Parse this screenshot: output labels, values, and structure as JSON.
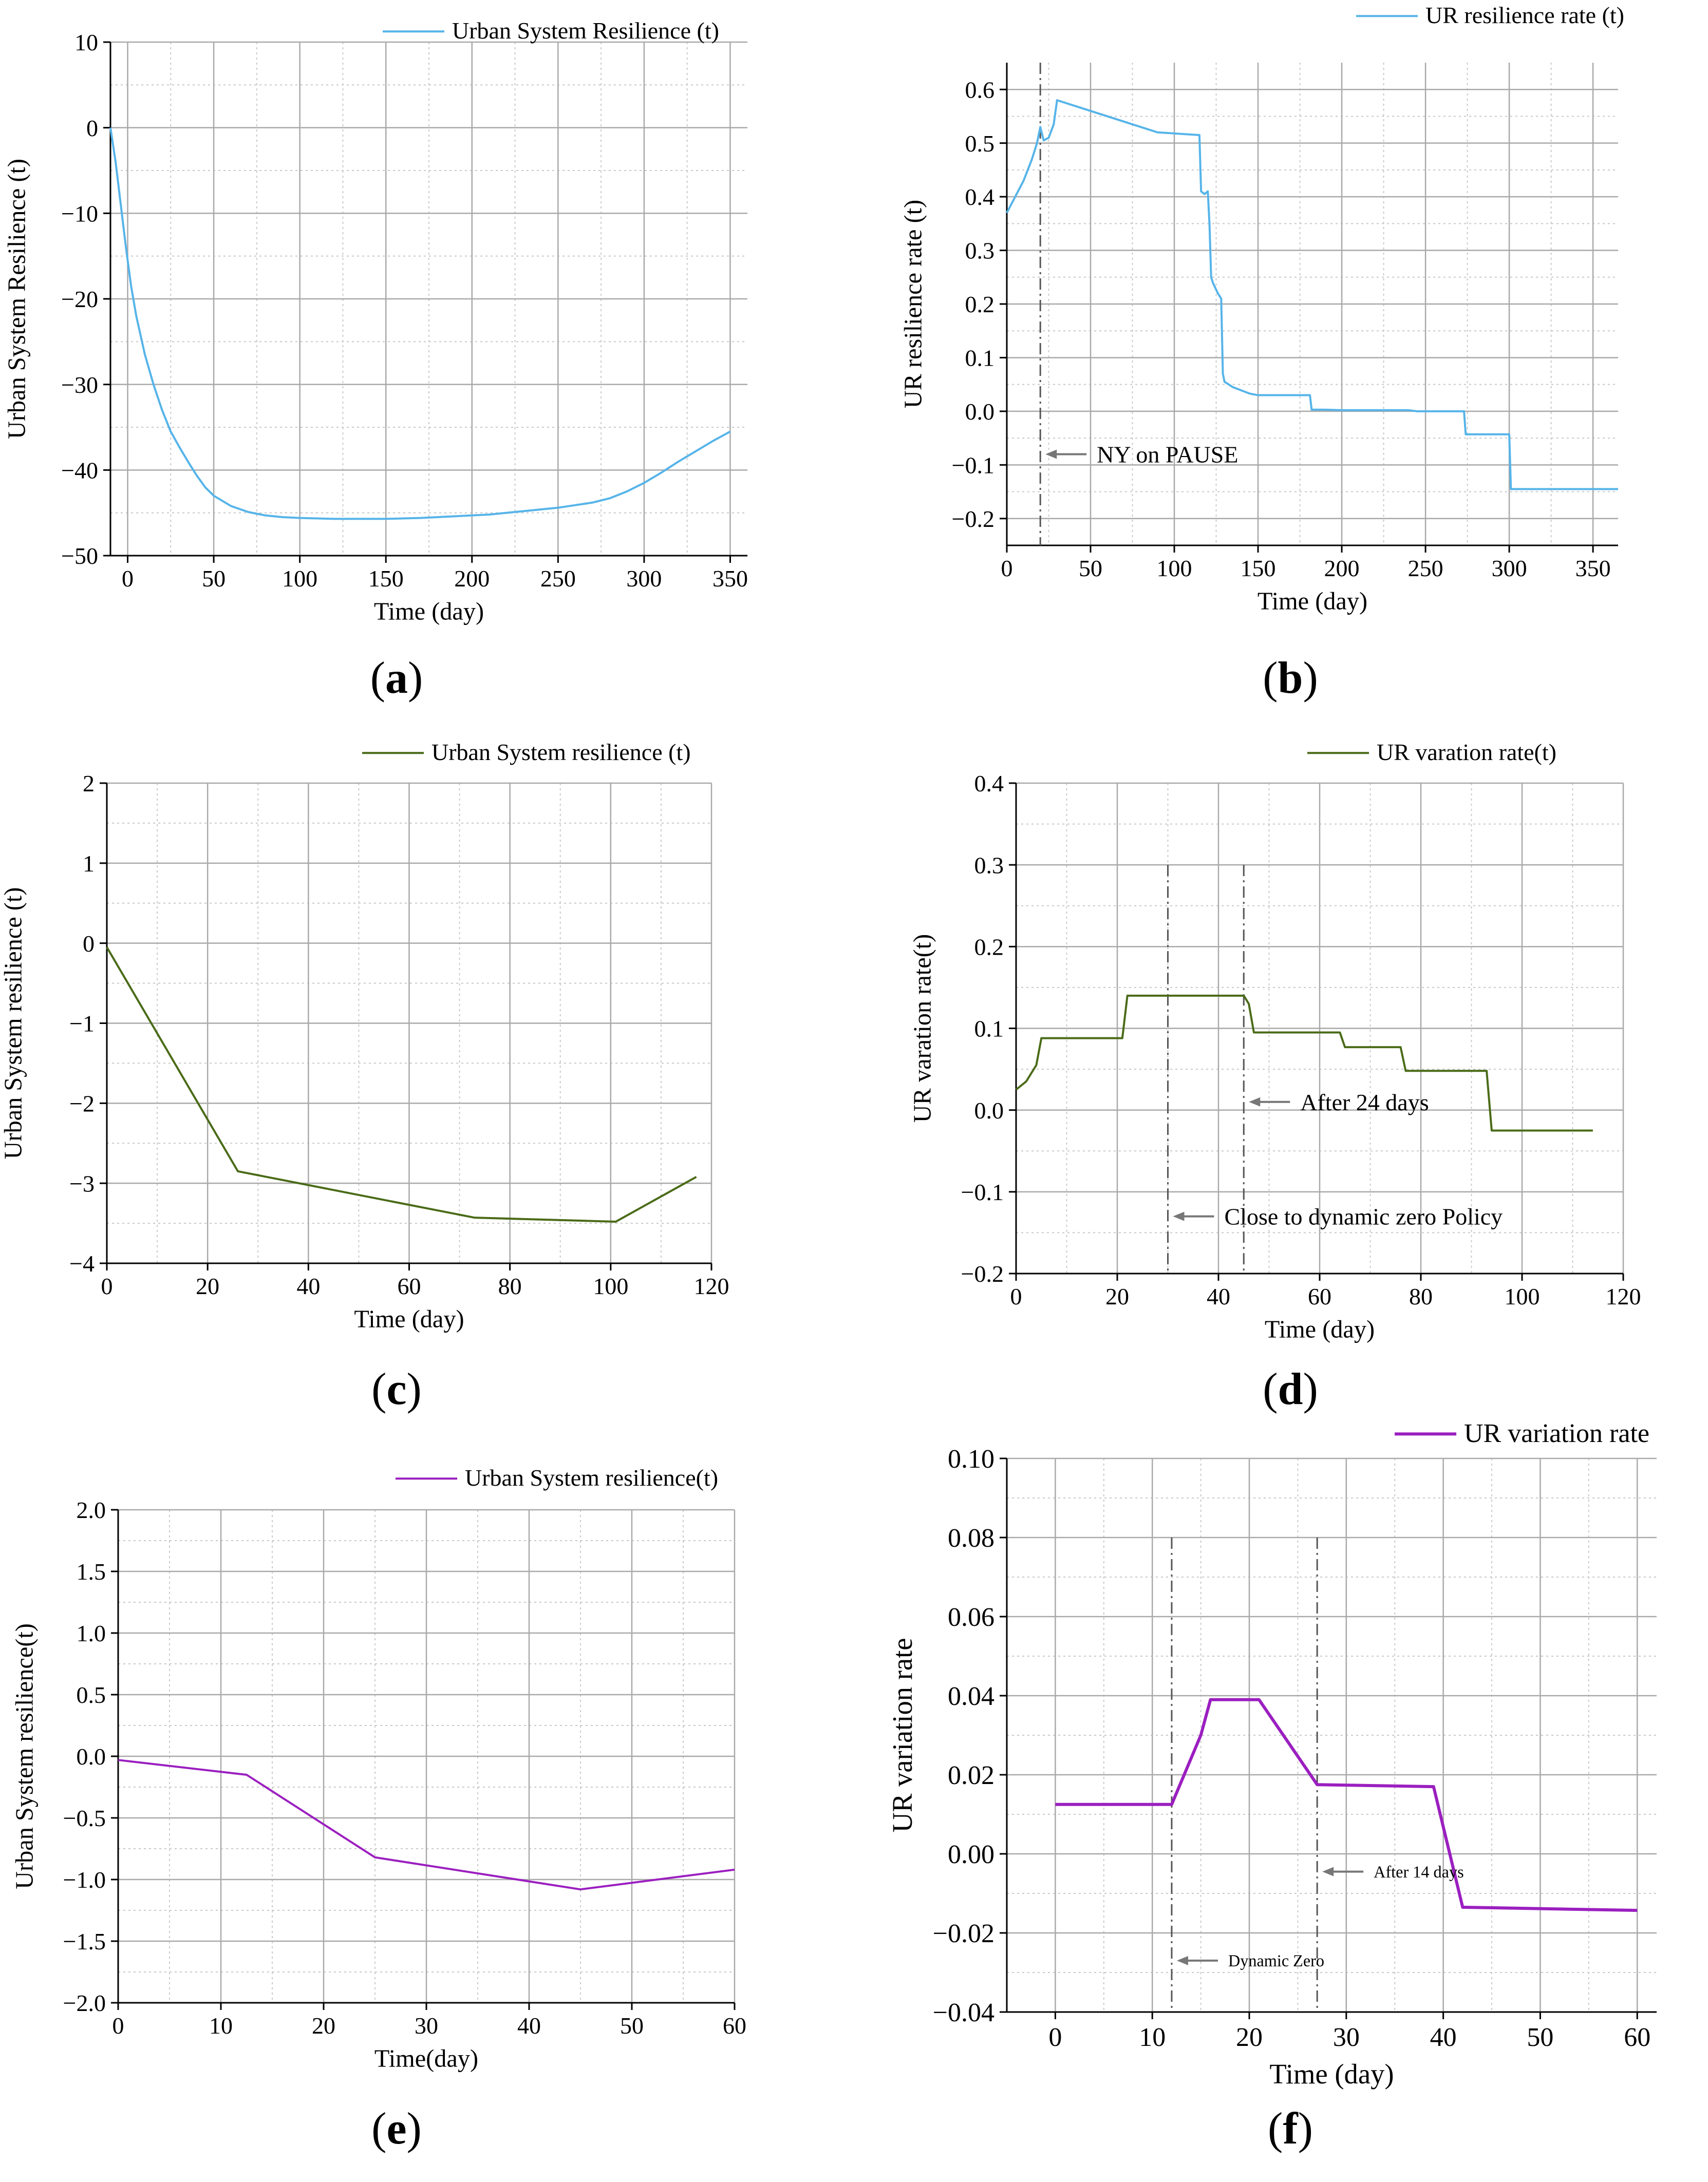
{
  "panel_labels": [
    "a",
    "b",
    "c",
    "d",
    "e",
    "f"
  ],
  "chart_data": [
    {
      "id": "a",
      "type": "line",
      "legend_position": "top-right",
      "title": "",
      "xlabel": "Time (day)",
      "ylabel": "Urban System Resilience (t)",
      "xlim": [
        -10,
        360
      ],
      "ylim": [
        -50,
        10
      ],
      "xticks": [
        0,
        50,
        100,
        150,
        200,
        250,
        300,
        350
      ],
      "yticks": [
        -50,
        -40,
        -30,
        -20,
        -10,
        0,
        10
      ],
      "xticklabels": [
        "0",
        "50",
        "100",
        "150",
        "200",
        "250",
        "300",
        "350"
      ],
      "yticklabels": [
        "−50",
        "−40",
        "−30",
        "−20",
        "−10",
        "0",
        "10"
      ],
      "color": "#56b4e9",
      "series": [
        {
          "name": "Urban System Resilience (t)",
          "x": [
            -10,
            -7,
            -4,
            -1,
            2,
            5,
            10,
            15,
            20,
            25,
            30,
            35,
            40,
            45,
            50,
            60,
            70,
            80,
            90,
            100,
            110,
            120,
            130,
            140,
            150,
            160,
            170,
            180,
            190,
            200,
            210,
            220,
            230,
            240,
            250,
            260,
            270,
            280,
            290,
            300,
            310,
            320,
            330,
            340,
            350
          ],
          "y": [
            0,
            -4,
            -9,
            -14,
            -18.5,
            -22,
            -26.5,
            -30,
            -33,
            -35.5,
            -37.3,
            -39,
            -40.6,
            -42,
            -43,
            -44.2,
            -44.9,
            -45.3,
            -45.5,
            -45.6,
            -45.65,
            -45.7,
            -45.7,
            -45.7,
            -45.7,
            -45.65,
            -45.6,
            -45.5,
            -45.4,
            -45.3,
            -45.2,
            -45,
            -44.8,
            -44.6,
            -44.4,
            -44.1,
            -43.8,
            -43.3,
            -42.5,
            -41.5,
            -40.3,
            -39,
            -37.8,
            -36.6,
            -35.5
          ]
        }
      ]
    },
    {
      "id": "b",
      "type": "line",
      "legend_position": "top-right",
      "title": "",
      "xlabel": "Time (day)",
      "ylabel": "UR resilience rate (t)",
      "xlim": [
        0,
        365
      ],
      "ylim": [
        -0.25,
        0.65
      ],
      "xticks": [
        0,
        50,
        100,
        150,
        200,
        250,
        300,
        350
      ],
      "yticks": [
        -0.2,
        -0.1,
        0.0,
        0.1,
        0.2,
        0.3,
        0.4,
        0.5,
        0.6
      ],
      "xticklabels": [
        "0",
        "50",
        "100",
        "150",
        "200",
        "250",
        "300",
        "350"
      ],
      "yticklabels": [
        "−0.2",
        "−0.1",
        "0.0",
        "0.1",
        "0.2",
        "0.3",
        "0.4",
        "0.5",
        "0.6"
      ],
      "color": "#56b4e9",
      "series": [
        {
          "name": "UR resilience rate (t)",
          "x": [
            0,
            5,
            10,
            15,
            18,
            20,
            22,
            25,
            28,
            30,
            60,
            90,
            115,
            116,
            118,
            120,
            121,
            122,
            123,
            126,
            128,
            129,
            130,
            135,
            145,
            150,
            160,
            170,
            181,
            182,
            190,
            200,
            210,
            220,
            240,
            245,
            260,
            273,
            274,
            300,
            301,
            310,
            320,
            340,
            365
          ],
          "y": [
            0.37,
            0.4,
            0.43,
            0.47,
            0.5,
            0.53,
            0.505,
            0.51,
            0.535,
            0.58,
            0.55,
            0.52,
            0.515,
            0.41,
            0.405,
            0.41,
            0.35,
            0.25,
            0.24,
            0.22,
            0.21,
            0.07,
            0.055,
            0.045,
            0.033,
            0.03,
            0.03,
            0.03,
            0.03,
            0.003,
            0.003,
            0.002,
            0.002,
            0.002,
            0.002,
            0.0,
            0.0,
            0.0,
            -0.043,
            -0.043,
            -0.145,
            -0.145,
            -0.145,
            -0.145,
            -0.145
          ]
        }
      ],
      "vlines": [
        20
      ],
      "annotations": [
        {
          "text": "NY on PAUSE",
          "x": 20,
          "y": -0.08
        }
      ]
    },
    {
      "id": "c",
      "type": "line",
      "legend_position": "top-right",
      "title": "",
      "xlabel": "Time (day)",
      "ylabel": "Urban System resilience (t)",
      "xlim": [
        0,
        120
      ],
      "ylim": [
        -4,
        2
      ],
      "xticks": [
        0,
        20,
        40,
        60,
        80,
        100,
        120
      ],
      "yticks": [
        -4,
        -3,
        -2,
        -1,
        0,
        1,
        2
      ],
      "xticklabels": [
        "0",
        "20",
        "40",
        "60",
        "80",
        "100",
        "120"
      ],
      "yticklabels": [
        "−4",
        "−3",
        "−2",
        "−1",
        "0",
        "1",
        "2"
      ],
      "color": "#4a6b18",
      "series": [
        {
          "name": "Urban System resilience (t)",
          "x": [
            0,
            26,
            73,
            101,
            117
          ],
          "y": [
            -0.05,
            -2.85,
            -3.43,
            -3.48,
            -2.92
          ]
        }
      ]
    },
    {
      "id": "d",
      "type": "line",
      "legend_position": "top-right",
      "title": "",
      "xlabel": "Time (day)",
      "ylabel": "UR varation rate(t)",
      "xlim": [
        0,
        120
      ],
      "ylim": [
        -0.2,
        0.4
      ],
      "xticks": [
        0,
        20,
        40,
        60,
        80,
        100,
        120
      ],
      "yticks": [
        -0.2,
        -0.1,
        0.0,
        0.1,
        0.2,
        0.3,
        0.4
      ],
      "xticklabels": [
        "0",
        "20",
        "40",
        "60",
        "80",
        "100",
        "120"
      ],
      "yticklabels": [
        "−0.2",
        "−0.1",
        "0.0",
        "0.1",
        "0.2",
        "0.3",
        "0.4"
      ],
      "color": "#4a6b18",
      "series": [
        {
          "name": "UR varation rate(t)",
          "x": [
            0,
            2,
            4,
            5,
            21,
            22,
            45,
            46,
            47,
            64,
            65,
            76,
            77,
            93,
            94,
            114
          ],
          "y": [
            0.025,
            0.035,
            0.055,
            0.088,
            0.088,
            0.14,
            0.14,
            0.13,
            0.095,
            0.095,
            0.077,
            0.077,
            0.048,
            0.048,
            -0.025,
            -0.025
          ]
        }
      ],
      "vlines": [
        30,
        45
      ],
      "vline_top": 0.3,
      "annotations": [
        {
          "text": "After 24 days",
          "x": 45,
          "y": 0.01
        },
        {
          "text": "Close to dynamic zero Policy",
          "x": 30,
          "y": -0.13
        }
      ]
    },
    {
      "id": "e",
      "type": "line",
      "legend_position": "top-right",
      "title": "",
      "xlabel": "Time(day)",
      "ylabel": "Urban System resilience(t)",
      "xlim": [
        0,
        60
      ],
      "ylim": [
        -2.0,
        2.0
      ],
      "xticks": [
        0,
        10,
        20,
        30,
        40,
        50,
        60
      ],
      "yticks": [
        -2.0,
        -1.5,
        -1.0,
        -0.5,
        0.0,
        0.5,
        1.0,
        1.5,
        2.0
      ],
      "xticklabels": [
        "0",
        "10",
        "20",
        "30",
        "40",
        "50",
        "60"
      ],
      "yticklabels": [
        "−2.0",
        "−1.5",
        "−1.0",
        "−0.5",
        "0.0",
        "0.5",
        "1.0",
        "1.5",
        "2.0"
      ],
      "color": "#9b1fc0",
      "series": [
        {
          "name": "Urban System resilience(t)",
          "x": [
            0,
            12.5,
            25,
            45,
            60
          ],
          "y": [
            -0.03,
            -0.15,
            -0.82,
            -1.08,
            -0.92
          ]
        }
      ]
    },
    {
      "id": "f",
      "type": "line",
      "legend_position": "top-right",
      "title": "",
      "xlabel": "Time (day)",
      "ylabel": "UR variation rate",
      "xlim": [
        -5,
        62
      ],
      "ylim": [
        -0.04,
        0.1
      ],
      "xticks": [
        0,
        10,
        20,
        30,
        40,
        50,
        60
      ],
      "yticks": [
        -0.04,
        -0.02,
        0.0,
        0.02,
        0.04,
        0.06,
        0.08,
        0.1
      ],
      "xticklabels": [
        "0",
        "10",
        "20",
        "30",
        "40",
        "50",
        "60"
      ],
      "yticklabels": [
        "−0.04",
        "−0.02",
        "0.00",
        "0.02",
        "0.04",
        "0.06",
        "0.08",
        "0.10"
      ],
      "color": "#9b1fc0",
      "series": [
        {
          "name": "UR variation rate",
          "x": [
            0,
            12,
            15,
            16,
            21,
            27,
            39,
            42,
            60
          ],
          "y": [
            0.0125,
            0.0125,
            0.03,
            0.039,
            0.039,
            0.0175,
            0.017,
            -0.0135,
            -0.0143
          ]
        }
      ],
      "vlines": [
        12,
        27
      ],
      "vline_top": 0.08,
      "annotations": [
        {
          "text": "After 14 days",
          "x": 27,
          "y": -0.0045
        },
        {
          "text": "Dynamic Zero",
          "x": 12,
          "y": -0.027
        }
      ]
    }
  ]
}
